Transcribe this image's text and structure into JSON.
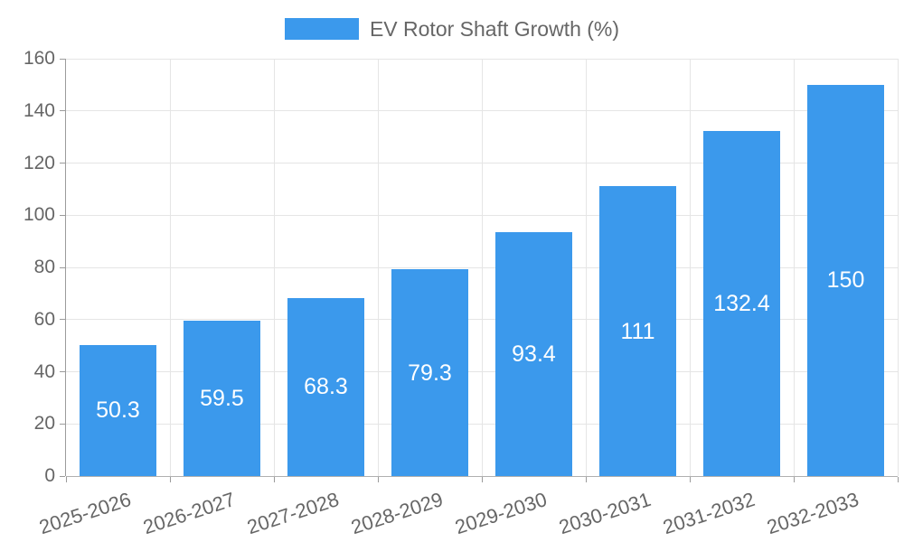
{
  "legend": {
    "label": "EV Rotor Shaft Growth (%)"
  },
  "chart_data": {
    "type": "bar",
    "title": "EV Rotor Shaft Growth (%)",
    "legend_position": "top",
    "categories": [
      "2025-2026",
      "2026-2027",
      "2027-2028",
      "2028-2029",
      "2029-2030",
      "2030-2031",
      "2031-2032",
      "2032-2033"
    ],
    "values": [
      50.3,
      59.5,
      68.3,
      79.3,
      93.4,
      111,
      132.4,
      150
    ],
    "value_labels": [
      "50.3",
      "59.5",
      "68.3",
      "79.3",
      "93.4",
      "111",
      "132.4",
      "150"
    ],
    "xlabel": "",
    "ylabel": "",
    "ylim": [
      0,
      160
    ],
    "yticks": [
      0,
      20,
      40,
      60,
      80,
      100,
      120,
      140,
      160
    ],
    "grid": "both",
    "x_label_rotation_deg": -18,
    "colors": {
      "bar": "#3B99EC",
      "grid": "#E5E5E5",
      "axis": "#9B9B9B",
      "axis_bottom": "#B0B0B0",
      "tick_label": "#666666",
      "value_label": "#FFFFFF",
      "background": "#FFFFFF"
    }
  }
}
